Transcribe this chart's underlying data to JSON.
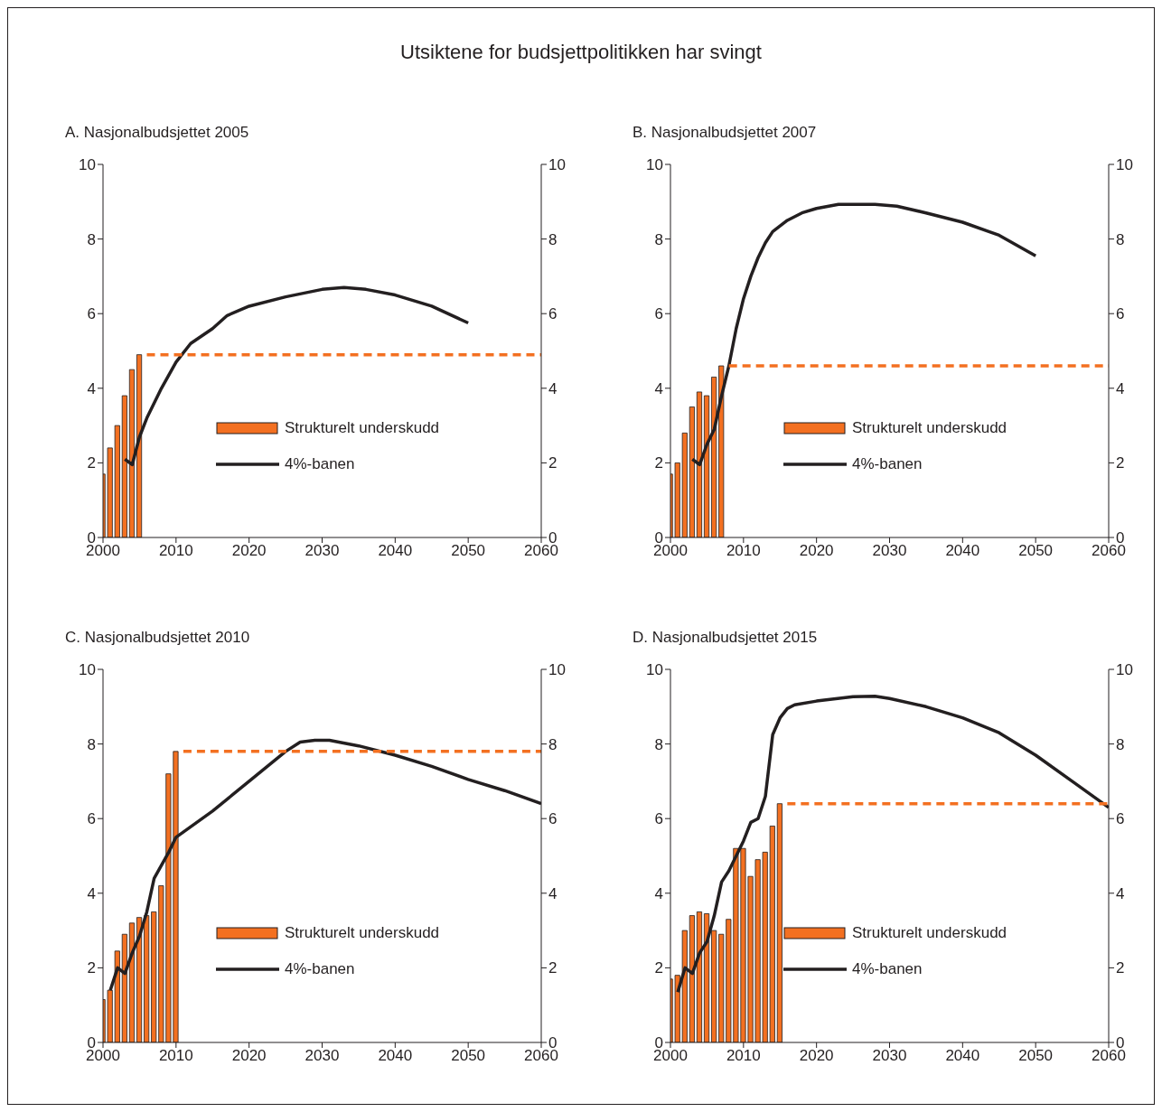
{
  "chart_data": [
    {
      "type": "bar",
      "title": "Utsiktene for budsjettpolitikken har svingt",
      "subtitle": "A.  Nasjonalbudsjettet 2005",
      "xlim": [
        2000,
        2060
      ],
      "xticks": [
        2000,
        2010,
        2020,
        2030,
        2040,
        2050,
        2060
      ],
      "ylim": [
        0,
        10
      ],
      "yticks": [
        0,
        2,
        4,
        6,
        8,
        10
      ],
      "y2lim": [
        0,
        10
      ],
      "y2ticks": [
        0,
        2,
        4,
        6,
        8,
        10
      ],
      "legend": "right",
      "series": [
        {
          "name": "Strukturelt underskudd",
          "color": "#f37021",
          "x": [
            2000,
            2001,
            2002,
            2003,
            2004,
            2005
          ],
          "values": [
            1.7,
            2.4,
            3.0,
            3.8,
            4.5,
            4.9
          ]
        },
        {
          "name": "4%-banen",
          "type": "line",
          "color": "#231f20",
          "x": [
            2003,
            2004,
            2005,
            2006,
            2008,
            2010,
            2012,
            2015,
            2017,
            2020,
            2025,
            2030,
            2033,
            2036,
            2040,
            2045,
            2050
          ],
          "values": [
            2.1,
            1.95,
            2.7,
            3.2,
            4.0,
            4.7,
            5.2,
            5.6,
            5.95,
            6.2,
            6.45,
            6.65,
            6.7,
            6.65,
            6.5,
            6.2,
            5.75
          ]
        },
        {
          "type": "line",
          "color": "#f37021",
          "line_style": "dashed",
          "x": [
            2006,
            2060
          ],
          "values": [
            4.9,
            4.9
          ]
        }
      ]
    },
    {
      "type": "bar",
      "subtitle": "B.  Nasjonalbudsjettet 2007",
      "xlim": [
        2000,
        2060
      ],
      "xticks": [
        2000,
        2010,
        2020,
        2030,
        2040,
        2050,
        2060
      ],
      "ylim": [
        0,
        10
      ],
      "yticks": [
        0,
        2,
        4,
        6,
        8,
        10
      ],
      "y2lim": [
        0,
        10
      ],
      "y2ticks": [
        0,
        2,
        4,
        6,
        8,
        10
      ],
      "legend": "right",
      "series": [
        {
          "name": "Strukturelt underskudd",
          "color": "#f37021",
          "x": [
            2000,
            2001,
            2002,
            2003,
            2004,
            2005,
            2006,
            2007
          ],
          "values": [
            1.7,
            2.0,
            2.8,
            3.5,
            3.9,
            3.8,
            4.3,
            4.6
          ]
        },
        {
          "name": "4%-banen",
          "type": "line",
          "color": "#231f20",
          "x": [
            2003,
            2004,
            2005,
            2006,
            2007,
            2008,
            2009,
            2010,
            2011,
            2012,
            2013,
            2014,
            2016,
            2018,
            2020,
            2023,
            2028,
            2031,
            2035,
            2040,
            2045,
            2050
          ],
          "values": [
            2.1,
            1.95,
            2.5,
            2.9,
            3.8,
            4.6,
            5.6,
            6.4,
            7.0,
            7.5,
            7.9,
            8.2,
            8.5,
            8.7,
            8.82,
            8.93,
            8.93,
            8.88,
            8.7,
            8.45,
            8.1,
            7.55
          ]
        },
        {
          "type": "line",
          "color": "#f37021",
          "line_style": "dashed",
          "x": [
            2008,
            2060
          ],
          "values": [
            4.6,
            4.6
          ]
        }
      ]
    },
    {
      "type": "bar",
      "subtitle": "C.  Nasjonalbudsjettet 2010",
      "xlim": [
        2000,
        2060
      ],
      "xticks": [
        2000,
        2010,
        2020,
        2030,
        2040,
        2050,
        2060
      ],
      "ylim": [
        0,
        10
      ],
      "yticks": [
        0,
        2,
        4,
        6,
        8,
        10
      ],
      "y2lim": [
        0,
        10
      ],
      "y2ticks": [
        0,
        2,
        4,
        6,
        8,
        10
      ],
      "legend": "right",
      "series": [
        {
          "name": "Strukturelt underskudd",
          "color": "#f37021",
          "x": [
            2000,
            2001,
            2002,
            2003,
            2004,
            2005,
            2006,
            2007,
            2008,
            2009,
            2010
          ],
          "values": [
            1.15,
            1.4,
            2.45,
            2.9,
            3.2,
            3.35,
            3.4,
            3.5,
            4.2,
            7.2,
            7.8
          ]
        },
        {
          "name": "4%-banen",
          "type": "line",
          "color": "#231f20",
          "x": [
            2001,
            2002,
            2003,
            2004,
            2005,
            2006,
            2007,
            2008,
            2009,
            2010,
            2015,
            2020,
            2025,
            2027,
            2029,
            2031,
            2035,
            2040,
            2045,
            2050,
            2055,
            2060
          ],
          "values": [
            1.4,
            2.0,
            1.85,
            2.4,
            2.85,
            3.5,
            4.4,
            4.75,
            5.1,
            5.5,
            6.2,
            7.0,
            7.8,
            8.05,
            8.1,
            8.1,
            7.95,
            7.7,
            7.4,
            7.05,
            6.75,
            6.4
          ]
        },
        {
          "type": "line",
          "color": "#f37021",
          "line_style": "dashed",
          "x": [
            2011,
            2060
          ],
          "values": [
            7.8,
            7.8
          ]
        }
      ]
    },
    {
      "type": "bar",
      "subtitle": "D.  Nasjonalbudsjettet 2015",
      "xlim": [
        2000,
        2060
      ],
      "xticks": [
        2000,
        2010,
        2020,
        2030,
        2040,
        2050,
        2060
      ],
      "ylim": [
        0,
        10
      ],
      "yticks": [
        0,
        2,
        4,
        6,
        8,
        10
      ],
      "y2lim": [
        0,
        10
      ],
      "y2ticks": [
        0,
        2,
        4,
        6,
        8,
        10
      ],
      "legend": "right",
      "series": [
        {
          "name": "Strukturelt underskudd",
          "color": "#f37021",
          "x": [
            2000,
            2001,
            2002,
            2003,
            2004,
            2005,
            2006,
            2007,
            2008,
            2009,
            2010,
            2011,
            2012,
            2013,
            2014,
            2015
          ],
          "values": [
            1.7,
            1.8,
            3.0,
            3.4,
            3.5,
            3.45,
            3.0,
            2.9,
            3.3,
            5.2,
            5.2,
            4.45,
            4.9,
            5.1,
            5.8,
            6.4
          ]
        },
        {
          "name": "4%-banen",
          "type": "line",
          "color": "#231f20",
          "x": [
            2001,
            2002,
            2003,
            2004,
            2005,
            2006,
            2007,
            2008,
            2009,
            2010,
            2011,
            2012,
            2013,
            2014,
            2015,
            2016,
            2017,
            2020,
            2025,
            2028,
            2030,
            2035,
            2040,
            2045,
            2050,
            2055,
            2060
          ],
          "values": [
            1.35,
            2.0,
            1.85,
            2.4,
            2.7,
            3.4,
            4.3,
            4.6,
            5.0,
            5.4,
            5.9,
            6.0,
            6.6,
            8.25,
            8.7,
            8.95,
            9.05,
            9.15,
            9.27,
            9.28,
            9.22,
            9.0,
            8.7,
            8.3,
            7.7,
            7.0,
            6.3
          ]
        },
        {
          "type": "line",
          "color": "#f37021",
          "line_style": "dashed",
          "x": [
            2016,
            2060
          ],
          "values": [
            6.4,
            6.4
          ]
        }
      ]
    }
  ]
}
